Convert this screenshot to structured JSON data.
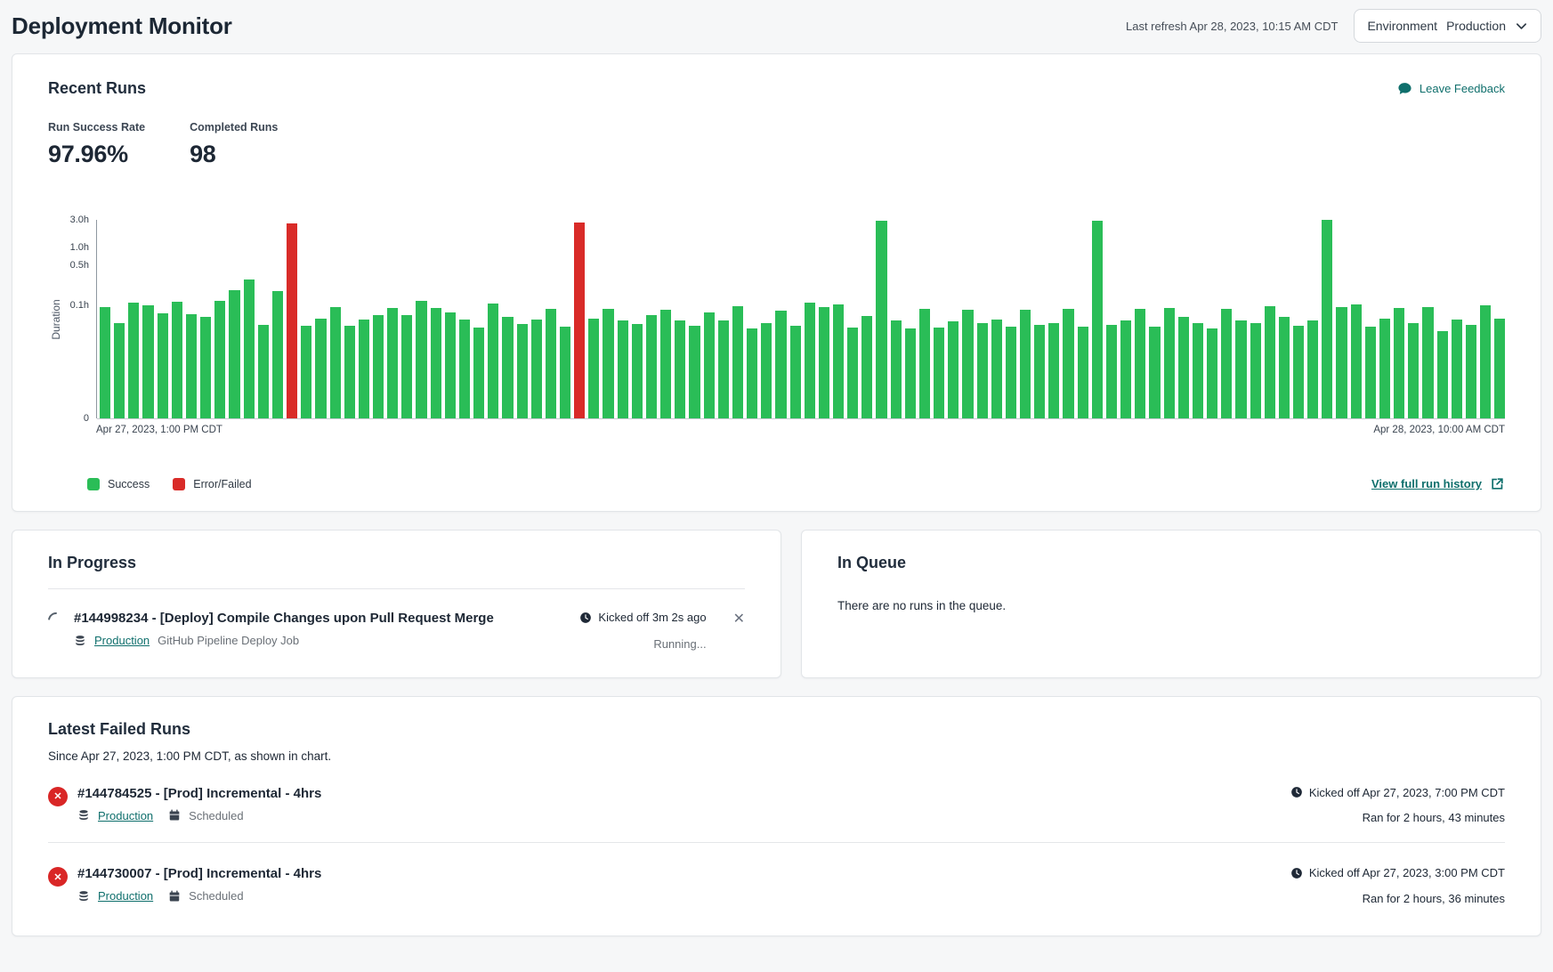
{
  "header": {
    "title": "Deployment Monitor",
    "last_refresh": "Last refresh Apr 28, 2023, 10:15 AM CDT",
    "environment_label": "Environment",
    "environment_value": "Production"
  },
  "recent_runs": {
    "title": "Recent Runs",
    "leave_feedback_label": "Leave Feedback",
    "metrics": [
      {
        "label": "Run Success Rate",
        "value": "97.96%"
      },
      {
        "label": "Completed Runs",
        "value": "98"
      }
    ],
    "view_history_label": "View full run history"
  },
  "chart_data": {
    "type": "bar",
    "ylabel": "Duration",
    "y_scale": "log",
    "y_axis_max": 3.0,
    "y_log_min": 0.00115,
    "y_ticks": [
      {
        "label": "3.0h",
        "value": 3.0
      },
      {
        "label": "1.0h",
        "value": 1.0
      },
      {
        "label": "0.5h",
        "value": 0.5
      },
      {
        "label": "0.1h",
        "value": 0.1
      },
      {
        "label": "0",
        "value": 0
      }
    ],
    "x_axis_start_label": "Apr 27, 2023, 1:00 PM CDT",
    "x_axis_end_label": "Apr 28, 2023, 10:00 AM CDT",
    "grid": false,
    "legend_position": "bottom-left",
    "legend": [
      {
        "label": "Success",
        "color": "#2abd57"
      },
      {
        "label": "Error/Failed",
        "color": "#d92b28"
      }
    ],
    "colors": {
      "success": "#2abd57",
      "failed": "#d92b28"
    },
    "runs_duration_hours": [
      0.095,
      0.05,
      0.113,
      0.1,
      0.073,
      0.115,
      0.071,
      0.064,
      0.12,
      0.185,
      0.28,
      0.046,
      0.18,
      2.6,
      0.045,
      0.06,
      0.095,
      0.045,
      0.058,
      0.07,
      0.09,
      0.068,
      0.12,
      0.092,
      0.076,
      0.057,
      0.042,
      0.108,
      0.065,
      0.048,
      0.058,
      0.087,
      0.044,
      2.72,
      0.06,
      0.087,
      0.055,
      0.048,
      0.07,
      0.085,
      0.055,
      0.045,
      0.076,
      0.055,
      0.098,
      0.041,
      0.05,
      0.082,
      0.045,
      0.112,
      0.095,
      0.105,
      0.042,
      0.066,
      2.9,
      0.055,
      0.041,
      0.087,
      0.042,
      0.053,
      0.085,
      0.05,
      0.058,
      0.044,
      0.085,
      0.047,
      0.05,
      0.087,
      0.044,
      2.9,
      0.047,
      0.055,
      0.087,
      0.044,
      0.09,
      0.065,
      0.05,
      0.04,
      0.087,
      0.056,
      0.05,
      0.099,
      0.065,
      0.045,
      0.056,
      2.95,
      0.095,
      0.105,
      0.044,
      0.06,
      0.09,
      0.05,
      0.093,
      0.036,
      0.057,
      0.047,
      0.1,
      0.06
    ],
    "failed_run_indices": [
      13,
      33
    ]
  },
  "in_progress": {
    "title": "In Progress",
    "run": {
      "title": "#144998234 - [Deploy] Compile Changes upon Pull Request Merge",
      "environment": "Production",
      "job_type": "GitHub Pipeline Deploy Job",
      "kicked_off": "Kicked off 3m 2s ago",
      "status": "Running..."
    }
  },
  "in_queue": {
    "title": "In Queue",
    "empty_message": "There are no runs in the queue."
  },
  "failed_runs": {
    "title": "Latest Failed Runs",
    "subtitle": "Since Apr 27, 2023, 1:00 PM CDT, as shown in chart.",
    "items": [
      {
        "title": "#144784525 - [Prod] Incremental - 4hrs",
        "environment": "Production",
        "trigger": "Scheduled",
        "kicked_off": "Kicked off Apr 27, 2023, 7:00 PM CDT",
        "ran_for": "Ran for 2 hours, 43 minutes"
      },
      {
        "title": "#144730007 - [Prod] Incremental - 4hrs",
        "environment": "Production",
        "trigger": "Scheduled",
        "kicked_off": "Kicked off Apr 27, 2023, 3:00 PM CDT",
        "ran_for": "Ran for 2 hours, 36 minutes"
      }
    ]
  }
}
